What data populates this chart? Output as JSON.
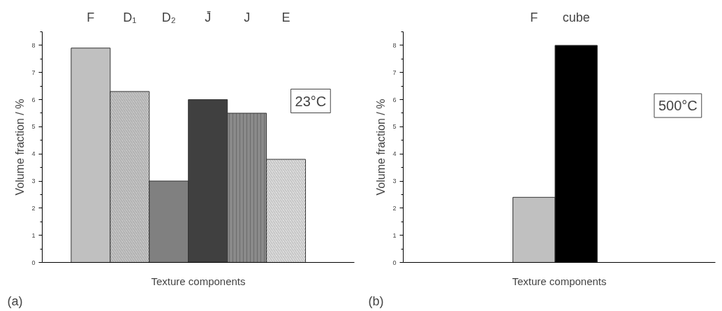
{
  "chart_data": [
    {
      "type": "bar",
      "categories": [
        "F",
        "D₁",
        "D₂",
        "J̄",
        "J",
        "E"
      ],
      "values": [
        7.9,
        6.3,
        3.0,
        6.0,
        5.5,
        3.8
      ],
      "colors": [
        "#c0c0c0",
        "#d8d8d8",
        "#808080",
        "#404040",
        "#8a8a8a",
        "#f4f4f4"
      ],
      "xlabel": "Texture components",
      "ylabel": "Volume fraction / %",
      "ylim": [
        0,
        8.5
      ],
      "yticks": [
        0,
        1,
        2,
        3,
        4,
        5,
        6,
        7,
        8
      ],
      "grid": false,
      "annotations": [
        "23°C",
        "(a)"
      ]
    },
    {
      "type": "bar",
      "categories": [
        "F",
        "cube"
      ],
      "values": [
        2.4,
        8.0
      ],
      "colors": [
        "#c0c0c0",
        "#000000"
      ],
      "xlabel": "Texture components",
      "ylabel": "Volume fraction / %",
      "ylim": [
        0,
        8.5
      ],
      "yticks": [
        0,
        1,
        2,
        3,
        4,
        5,
        6,
        7,
        8
      ],
      "grid": false,
      "annotations": [
        "500°C",
        "(b)"
      ]
    }
  ]
}
